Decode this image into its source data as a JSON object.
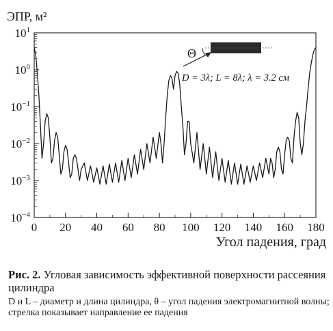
{
  "chart_data": {
    "type": "line",
    "ylabel": "ЭПР, м²",
    "xlabel": "Угол падения, град",
    "x_ticks": [
      0,
      20,
      40,
      60,
      80,
      100,
      120,
      140,
      160,
      180
    ],
    "y_ticks": [
      {
        "base": "10",
        "exp": "1",
        "value": 10
      },
      {
        "base": "10",
        "exp": "0",
        "value": 1
      },
      {
        "base": "10",
        "exp": "−1",
        "value": 0.1
      },
      {
        "base": "10",
        "exp": "−2",
        "value": 0.01
      },
      {
        "base": "10",
        "exp": "−3",
        "value": 0.001
      },
      {
        "base": "10",
        "exp": "−4",
        "value": 0.0001
      }
    ],
    "xlim": [
      0,
      180
    ],
    "ylim": [
      0.0001,
      10
    ],
    "y_scale": "log",
    "grid": false,
    "series": [
      {
        "x": [
          0,
          1,
          2,
          3,
          4,
          5,
          6,
          7,
          8,
          9,
          10,
          11,
          12,
          13,
          14,
          15,
          16,
          17,
          18,
          19,
          20,
          21,
          22,
          23,
          24,
          25,
          26,
          27,
          28,
          29,
          30,
          32,
          34,
          36,
          38,
          40,
          42,
          44,
          46,
          48,
          50,
          52,
          54,
          56,
          58,
          60,
          62,
          64,
          66,
          68,
          70,
          72,
          74,
          76,
          78,
          80,
          81,
          82,
          83,
          84,
          85,
          86,
          87,
          88,
          89,
          90,
          91,
          92,
          93,
          94,
          95,
          96,
          97,
          98,
          99,
          100,
          102,
          104,
          106,
          108,
          110,
          112,
          114,
          116,
          118,
          120,
          122,
          124,
          126,
          128,
          130,
          132,
          134,
          136,
          138,
          140,
          142,
          144,
          146,
          148,
          150,
          151,
          152,
          153,
          154,
          155,
          156,
          157,
          158,
          159,
          160,
          161,
          162,
          163,
          164,
          165,
          166,
          167,
          168,
          169,
          170,
          171,
          172,
          173,
          174,
          175,
          176,
          177,
          178,
          179,
          180
        ],
        "values": [
          4.0,
          2.5,
          0.8,
          0.2,
          0.03,
          0.004,
          0.01,
          0.04,
          0.065,
          0.05,
          0.015,
          0.003,
          0.004,
          0.012,
          0.02,
          0.015,
          0.005,
          0.0015,
          0.002,
          0.006,
          0.009,
          0.007,
          0.003,
          0.0012,
          0.0015,
          0.004,
          0.005,
          0.004,
          0.002,
          0.001,
          0.002,
          0.003,
          0.001,
          0.0025,
          0.0009,
          0.0022,
          0.0008,
          0.0025,
          0.0008,
          0.0028,
          0.0009,
          0.003,
          0.0009,
          0.0035,
          0.001,
          0.004,
          0.0012,
          0.005,
          0.0015,
          0.007,
          0.002,
          0.01,
          0.003,
          0.015,
          0.004,
          0.02,
          0.01,
          0.003,
          0.01,
          0.05,
          0.2,
          0.5,
          0.7,
          0.6,
          0.3,
          0.7,
          0.9,
          0.8,
          0.4,
          0.1,
          0.03,
          0.005,
          0.01,
          0.04,
          0.04,
          0.01,
          0.003,
          0.02,
          0.002,
          0.01,
          0.0015,
          0.008,
          0.0012,
          0.006,
          0.001,
          0.004,
          0.0009,
          0.0035,
          0.0008,
          0.003,
          0.0008,
          0.0028,
          0.0008,
          0.0025,
          0.0009,
          0.0025,
          0.001,
          0.003,
          0.0012,
          0.004,
          0.0015,
          0.004,
          0.003,
          0.0012,
          0.002,
          0.006,
          0.008,
          0.006,
          0.002,
          0.0015,
          0.005,
          0.012,
          0.015,
          0.012,
          0.004,
          0.003,
          0.015,
          0.04,
          0.07,
          0.05,
          0.01,
          0.005,
          0.01,
          0.04,
          0.1,
          0.3,
          0.8,
          1.5,
          2.5,
          3.5,
          4.0
        ]
      }
    ],
    "annotations": {
      "angle_symbol": "Θ",
      "params": "D = 3λ; L = 8λ; λ = 3.2 см"
    }
  },
  "caption": {
    "label": "Рис. 2.",
    "title": "Угловая зависимость эффективной поверхности рассеяния цилиндра",
    "note": "D и L – диаметр и длина цилиндра, θ – угол падения электромагнитной волны; стрелка показывает направление ее падения"
  }
}
